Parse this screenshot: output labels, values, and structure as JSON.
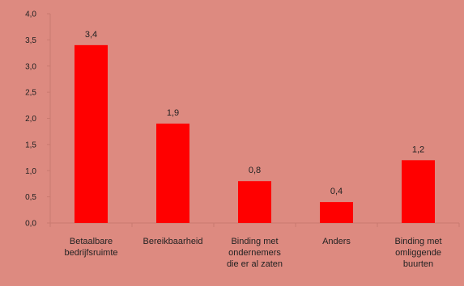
{
  "chart_data": {
    "type": "bar",
    "title": "",
    "xlabel": "",
    "ylabel": "",
    "categories": [
      [
        "Betaalbare",
        "bedrijfsruimte"
      ],
      [
        "Bereikbaarheid"
      ],
      [
        "Binding met",
        "ondernemers",
        "die er al zaten"
      ],
      [
        "Anders"
      ],
      [
        "Binding met",
        "omliggende",
        "buurten"
      ]
    ],
    "values": [
      3.4,
      1.9,
      0.8,
      0.4,
      1.2
    ],
    "value_labels": [
      "3,4",
      "1,9",
      "0,8",
      "0,4",
      "1,2"
    ],
    "ylim": [
      0,
      4.0
    ],
    "yticks": [
      0,
      0.5,
      1.0,
      1.5,
      2.0,
      2.5,
      3.0,
      3.5,
      4.0
    ],
    "ytick_labels": [
      "0,0",
      "0,5",
      "1,0",
      "1,5",
      "2,0",
      "2,5",
      "3,0",
      "3,5",
      "4,0"
    ],
    "grid": false,
    "legend": "none",
    "colors": {
      "bar": "#ff0000",
      "background": "#dd8a80",
      "axis": "#c97a70",
      "text": "#222222"
    }
  }
}
